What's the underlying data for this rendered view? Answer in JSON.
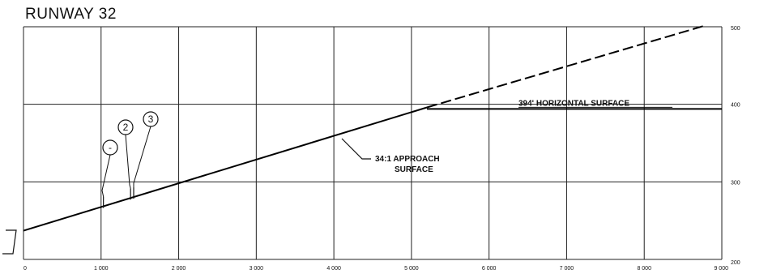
{
  "chart_data": {
    "type": "line",
    "title": "RUNWAY 32",
    "xlabel": "",
    "ylabel": "",
    "xlim": [
      0,
      9000
    ],
    "ylim": [
      200,
      500
    ],
    "grid": true,
    "x_ticks": [
      "0",
      "1 000",
      "2 000",
      "3 000",
      "4 000",
      "5 000",
      "6 000",
      "7 000",
      "8 000",
      "9 000"
    ],
    "y_ticks": [
      "200",
      "300",
      "400",
      "500"
    ],
    "y_tick_values": [
      200,
      300,
      400,
      500
    ],
    "series": [
      {
        "style": "solid",
        "x": [
          0,
          5200
        ],
        "y": [
          237,
          396
        ]
      },
      {
        "style": "dashed",
        "x": [
          5200,
          8800
        ],
        "y": [
          396,
          502
        ]
      },
      {
        "style": "solid",
        "x": [
          5200,
          9000
        ],
        "y": [
          394,
          394
        ]
      }
    ],
    "annotations": {
      "horizontal": "394' HORIZONTAL SURFACE",
      "approach_line1": "34:1 APPROACH",
      "approach_line2": "SURFACE"
    },
    "markers": [
      {
        "label": "-",
        "x": 1030
      },
      {
        "label": "2",
        "x": 1380
      },
      {
        "label": "3",
        "x": 1420
      }
    ]
  }
}
